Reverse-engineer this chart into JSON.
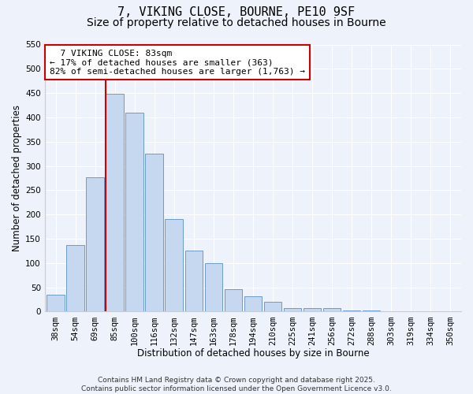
{
  "title": "7, VIKING CLOSE, BOURNE, PE10 9SF",
  "subtitle": "Size of property relative to detached houses in Bourne",
  "xlabel": "Distribution of detached houses by size in Bourne",
  "ylabel": "Number of detached properties",
  "bar_labels": [
    "38sqm",
    "54sqm",
    "69sqm",
    "85sqm",
    "100sqm",
    "116sqm",
    "132sqm",
    "147sqm",
    "163sqm",
    "178sqm",
    "194sqm",
    "210sqm",
    "225sqm",
    "241sqm",
    "256sqm",
    "272sqm",
    "288sqm",
    "303sqm",
    "319sqm",
    "334sqm",
    "350sqm"
  ],
  "bar_values": [
    35,
    137,
    277,
    449,
    409,
    325,
    191,
    125,
    100,
    46,
    32,
    20,
    7,
    7,
    8,
    3,
    2,
    1,
    1,
    1,
    1
  ],
  "bar_color": "#c5d8ef",
  "bar_edge_color": "#5b8ec4",
  "vline_x_index": 3,
  "vline_color": "#cc0000",
  "annotation_title": "7 VIKING CLOSE: 83sqm",
  "annotation_line1": "← 17% of detached houses are smaller (363)",
  "annotation_line2": "82% of semi-detached houses are larger (1,763) →",
  "annotation_box_color": "#ffffff",
  "annotation_box_edge": "#cc0000",
  "ylim": [
    0,
    550
  ],
  "yticks": [
    0,
    50,
    100,
    150,
    200,
    250,
    300,
    350,
    400,
    450,
    500,
    550
  ],
  "footer_line1": "Contains HM Land Registry data © Crown copyright and database right 2025.",
  "footer_line2": "Contains public sector information licensed under the Open Government Licence v3.0.",
  "background_color": "#eef2fa",
  "grid_color": "#ffffff",
  "title_fontsize": 11,
  "subtitle_fontsize": 10,
  "axis_label_fontsize": 8.5,
  "tick_fontsize": 7.5,
  "annotation_fontsize": 8,
  "footer_fontsize": 6.5
}
